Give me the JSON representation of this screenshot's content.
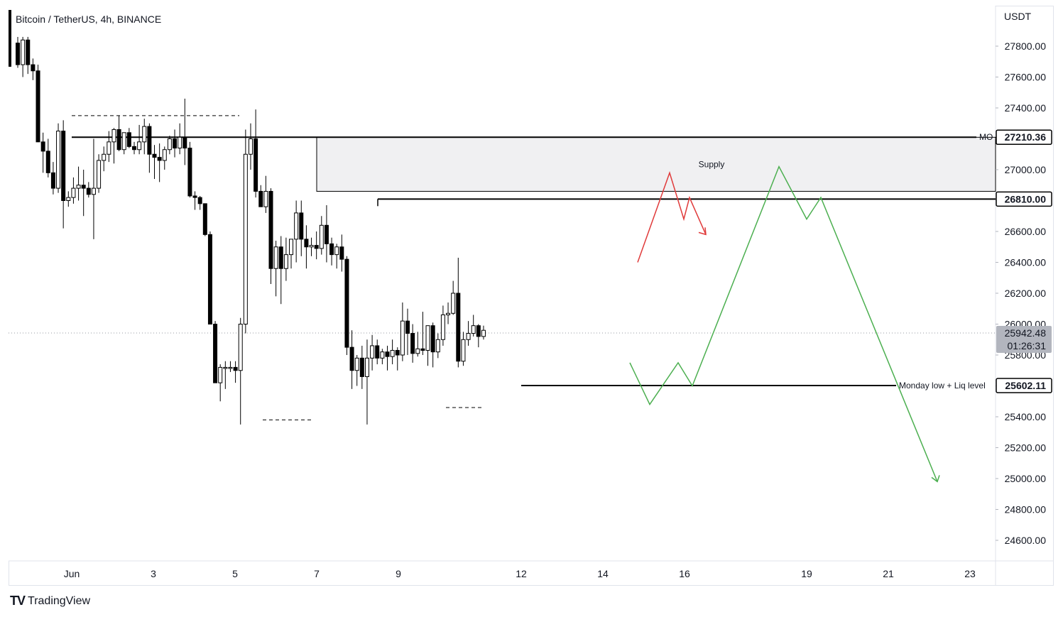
{
  "header": {
    "title": "Bitcoin / TetherUS, 4h, BINANCE"
  },
  "axis_unit": "USDT",
  "footer": {
    "brand": "TradingView",
    "brand_icon": "tradingview-logo-icon"
  },
  "colors": {
    "up": "#ffffff",
    "down": "#000000",
    "wick": "#000000",
    "red_path": "#e03a3a",
    "green_path": "#4caf50",
    "supply_zone": "#f0f0f2"
  },
  "chart_data": {
    "type": "candlestick",
    "symbol": "Bitcoin / TetherUS",
    "interval": "4h",
    "exchange": "BINANCE",
    "ylim": [
      24500,
      27900
    ],
    "y_ticks": [
      "27800.00",
      "27600.00",
      "27400.00",
      "27200.00",
      "27000.00",
      "26800.00",
      "26600.00",
      "26400.00",
      "26200.00",
      "26000.00",
      "25800.00",
      "25600.00",
      "25400.00",
      "25200.00",
      "25000.00",
      "24800.00",
      "24600.00"
    ],
    "x_ticks": [
      "Jun",
      "3",
      "5",
      "7",
      "9",
      "12",
      "14",
      "16",
      "19",
      "21",
      "23"
    ],
    "candles": [
      [
        27820,
        27860,
        27660,
        27680
      ],
      [
        27680,
        27860,
        27600,
        27840
      ],
      [
        27840,
        27860,
        27620,
        27680
      ],
      [
        27680,
        27720,
        27580,
        27640
      ],
      [
        27640,
        27680,
        27180,
        27180
      ],
      [
        27180,
        27240,
        26980,
        27120
      ],
      [
        27120,
        27200,
        26950,
        26980
      ],
      [
        26980,
        27050,
        26840,
        26880
      ],
      [
        26880,
        27300,
        26850,
        27250
      ],
      [
        27250,
        27320,
        26620,
        26800
      ],
      [
        26800,
        26860,
        26760,
        26820
      ],
      [
        26820,
        26950,
        26780,
        26880
      ],
      [
        26880,
        27020,
        26800,
        26900
      ],
      [
        26900,
        27000,
        26700,
        26880
      ],
      [
        26880,
        26920,
        26820,
        26840
      ],
      [
        26840,
        27200,
        26550,
        26880
      ],
      [
        26880,
        27100,
        26850,
        27060
      ],
      [
        27060,
        27150,
        26990,
        27100
      ],
      [
        27100,
        27250,
        27050,
        27180
      ],
      [
        27180,
        27270,
        27040,
        27260
      ],
      [
        27260,
        27350,
        27120,
        27130
      ],
      [
        27130,
        27240,
        27100,
        27240
      ],
      [
        27240,
        27270,
        27140,
        27150
      ],
      [
        27150,
        27180,
        27100,
        27130
      ],
      [
        27130,
        27290,
        27100,
        27180
      ],
      [
        27180,
        27330,
        27100,
        27280
      ],
      [
        27280,
        27300,
        26980,
        27100
      ],
      [
        27100,
        27160,
        26940,
        27080
      ],
      [
        27080,
        27170,
        26920,
        27060
      ],
      [
        27060,
        27150,
        27000,
        27130
      ],
      [
        27130,
        27220,
        27100,
        27200
      ],
      [
        27200,
        27260,
        27080,
        27140
      ],
      [
        27140,
        27300,
        27100,
        27210
      ],
      [
        27210,
        27460,
        27030,
        27140
      ],
      [
        27140,
        27180,
        26820,
        26830
      ],
      [
        26830,
        26860,
        26740,
        26820
      ],
      [
        26820,
        26830,
        26740,
        26780
      ],
      [
        26780,
        26780,
        26570,
        26580
      ],
      [
        26580,
        26600,
        26000,
        26000
      ],
      [
        26000,
        26020,
        25620,
        25620
      ],
      [
        25620,
        25740,
        25500,
        25720
      ],
      [
        25720,
        25760,
        25580,
        25720
      ],
      [
        25720,
        25760,
        25690,
        25720
      ],
      [
        25720,
        25760,
        25620,
        25700
      ],
      [
        25700,
        26040,
        25350,
        26000
      ],
      [
        26000,
        27260,
        25940,
        27100
      ],
      [
        27100,
        27300,
        27000,
        27200
      ],
      [
        27200,
        27390,
        26820,
        26860
      ],
      [
        26860,
        26900,
        26760,
        26760
      ],
      [
        26760,
        26960,
        26720,
        26860
      ],
      [
        26860,
        26880,
        26260,
        26360
      ],
      [
        26360,
        26540,
        26180,
        26500
      ],
      [
        26500,
        26570,
        26130,
        26360
      ],
      [
        26360,
        26560,
        26280,
        26450
      ],
      [
        26450,
        26550,
        26360,
        26550
      ],
      [
        26550,
        26800,
        26400,
        26720
      ],
      [
        26720,
        26800,
        26440,
        26550
      ],
      [
        26550,
        26640,
        26360,
        26500
      ],
      [
        26500,
        26560,
        26440,
        26510
      ],
      [
        26510,
        26600,
        26420,
        26490
      ],
      [
        26490,
        26700,
        26450,
        26640
      ],
      [
        26640,
        26770,
        26400,
        26520
      ],
      [
        26520,
        26560,
        26380,
        26450
      ],
      [
        26450,
        26520,
        26360,
        26500
      ],
      [
        26500,
        26580,
        26340,
        26420
      ],
      [
        26420,
        26440,
        25800,
        25850
      ],
      [
        25850,
        25960,
        25580,
        25700
      ],
      [
        25700,
        25800,
        25600,
        25780
      ],
      [
        25780,
        25860,
        25580,
        25660
      ],
      [
        25660,
        25900,
        25350,
        25780
      ],
      [
        25780,
        25930,
        25700,
        25860
      ],
      [
        25860,
        25900,
        25740,
        25780
      ],
      [
        25780,
        25840,
        25740,
        25820
      ],
      [
        25820,
        25860,
        25700,
        25790
      ],
      [
        25790,
        25900,
        25740,
        25830
      ],
      [
        25830,
        25850,
        25700,
        25800
      ],
      [
        25800,
        26140,
        25760,
        26020
      ],
      [
        26020,
        26100,
        25800,
        25940
      ],
      [
        25940,
        26000,
        25750,
        25810
      ],
      [
        25810,
        25950,
        25790,
        25840
      ],
      [
        25840,
        26080,
        25800,
        25830
      ],
      [
        25830,
        25980,
        25730,
        25990
      ],
      [
        25990,
        26010,
        25720,
        25820
      ],
      [
        25820,
        25940,
        25780,
        25900
      ],
      [
        25900,
        26120,
        25860,
        26060
      ],
      [
        26060,
        26140,
        26000,
        26070
      ],
      [
        26070,
        26280,
        26060,
        26200
      ],
      [
        26200,
        26430,
        25720,
        25760
      ],
      [
        25760,
        25950,
        25730,
        25900
      ],
      [
        25900,
        26020,
        25860,
        25940
      ],
      [
        25940,
        26060,
        25920,
        25990
      ],
      [
        25990,
        26000,
        25850,
        25920
      ],
      [
        25920,
        25990,
        25900,
        25960
      ]
    ],
    "horizontal_levels": [
      {
        "label": "MO",
        "value": "27210.36"
      },
      {
        "label": "",
        "value": "26810.00"
      },
      {
        "label": "Monday low + Liq level",
        "value": "25602.11"
      }
    ],
    "current_price": {
      "value": "25942.48",
      "countdown": "01:26:31"
    },
    "zones": [
      {
        "label": "Supply",
        "from": 26860,
        "to": 27210
      }
    ],
    "projection_red": [
      [
        27.0,
        26400
      ],
      [
        29.2,
        26980
      ],
      [
        29.8,
        26680
      ],
      [
        30.1,
        26820
      ],
      [
        30.7,
        26580
      ]
    ],
    "projection_green": [
      [
        27.0,
        25750
      ],
      [
        28.0,
        25480
      ],
      [
        29.2,
        25750
      ],
      [
        30.0,
        25600
      ],
      [
        33.8,
        27020
      ],
      [
        35.0,
        26680
      ],
      [
        35.6,
        26820
      ],
      [
        40.8,
        24980
      ]
    ]
  }
}
